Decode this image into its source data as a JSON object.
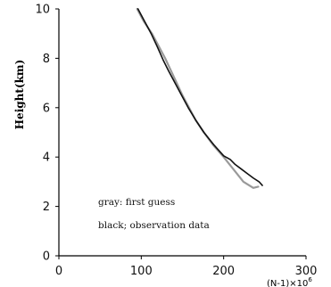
{
  "chart_data": {
    "type": "line",
    "xlabel_main": "(N-1)",
    "xlabel_times": "×",
    "xlabel_base": "10",
    "xlabel_exp": "6",
    "ylabel": "Height(km)",
    "xlim": [
      0,
      300
    ],
    "ylim": [
      0,
      10
    ],
    "x_ticks": [
      0,
      100,
      200,
      300
    ],
    "y_ticks": [
      0,
      2,
      4,
      6,
      8,
      10
    ],
    "grid": false,
    "legend_items": [
      "gray: first guess",
      "black; observation data"
    ],
    "series": [
      {
        "color": "#9a9a9a",
        "width": 2.2,
        "points": [
          [
            95,
            10
          ],
          [
            103,
            9.5
          ],
          [
            113,
            9.0
          ],
          [
            121,
            8.5
          ],
          [
            129,
            8.0
          ],
          [
            136,
            7.5
          ],
          [
            143,
            7.0
          ],
          [
            150,
            6.5
          ],
          [
            158,
            6.0
          ],
          [
            166,
            5.5
          ],
          [
            176,
            5.0
          ],
          [
            187,
            4.5
          ],
          [
            200,
            4.0
          ],
          [
            212,
            3.5
          ],
          [
            224,
            3.0
          ],
          [
            236,
            2.75
          ],
          [
            242,
            2.8
          ]
        ]
      },
      {
        "color": "#111111",
        "width": 1.6,
        "points": [
          [
            96,
            10
          ],
          [
            104,
            9.5
          ],
          [
            112,
            9.0
          ],
          [
            119,
            8.5
          ],
          [
            123,
            8.2
          ],
          [
            127,
            7.9
          ],
          [
            133,
            7.5
          ],
          [
            141,
            7.0
          ],
          [
            149,
            6.5
          ],
          [
            157,
            6.0
          ],
          [
            166,
            5.5
          ],
          [
            176,
            5.0
          ],
          [
            188,
            4.5
          ],
          [
            200,
            4.05
          ],
          [
            208,
            3.9
          ],
          [
            214,
            3.7
          ],
          [
            222,
            3.5
          ],
          [
            230,
            3.3
          ],
          [
            236,
            3.15
          ],
          [
            243,
            3.0
          ],
          [
            247,
            2.85
          ]
        ]
      }
    ]
  }
}
